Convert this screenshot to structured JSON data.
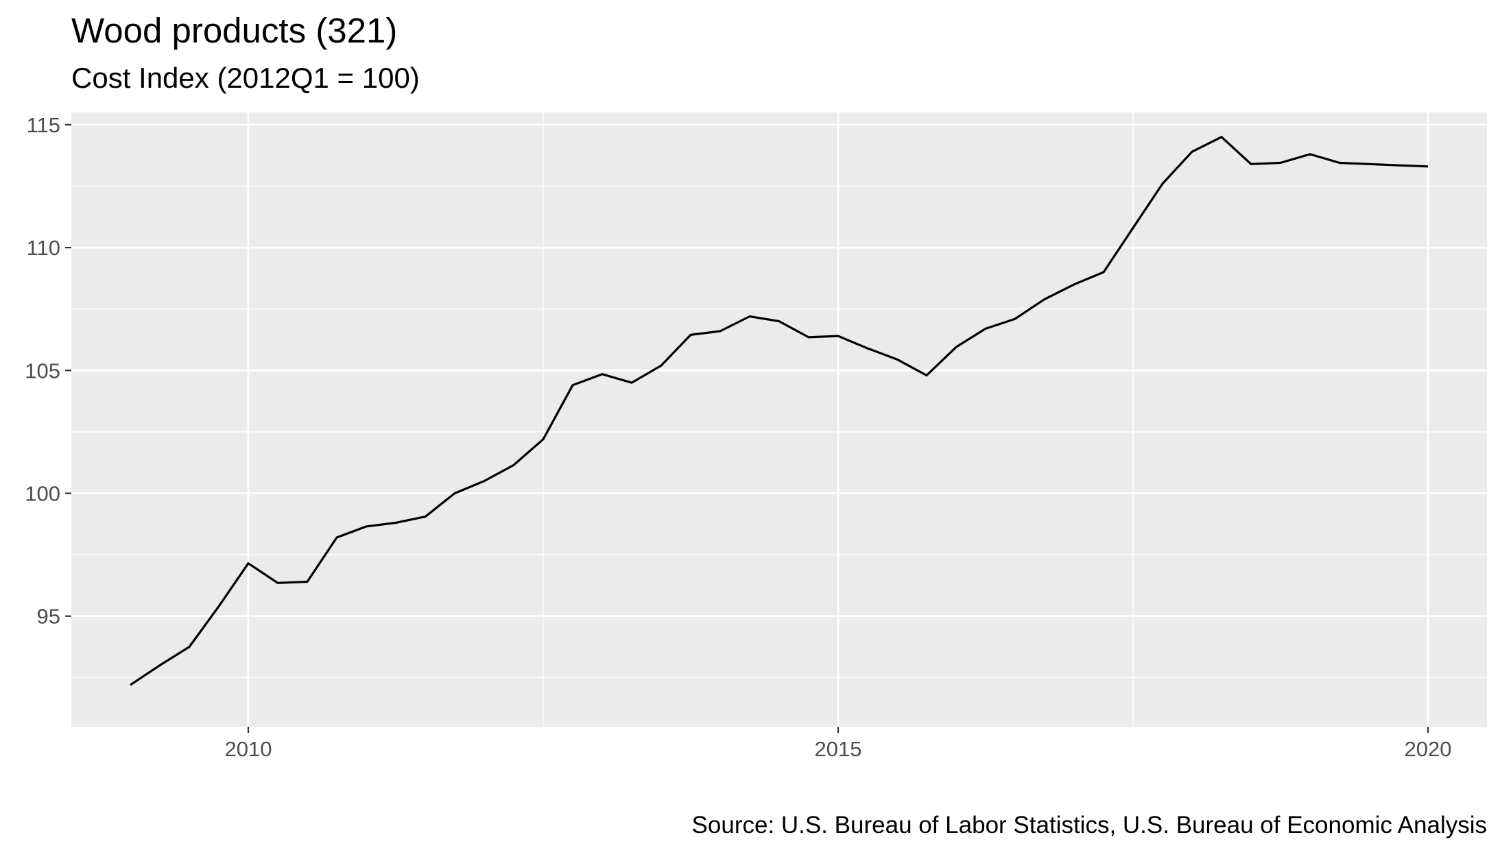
{
  "chart_data": {
    "type": "line",
    "title": "Wood products (321)",
    "subtitle": "Cost Index (2012Q1 = 100)",
    "caption": "Source: U.S. Bureau of Labor Statistics, U.S. Bureau of Economic Analysis",
    "xlabel": "",
    "ylabel": "",
    "xlim": [
      2008.5,
      2020.5
    ],
    "ylim": [
      90.5,
      115.5
    ],
    "x_ticks": [
      2010,
      2015,
      2020
    ],
    "x_tick_labels": [
      "2010",
      "2015",
      "2020"
    ],
    "y_ticks": [
      95,
      100,
      105,
      110,
      115
    ],
    "y_tick_labels": [
      "95",
      "100",
      "105",
      "110",
      "115"
    ],
    "grid": true,
    "legend": "none",
    "colors": {
      "panel": "#EBEBEB",
      "grid": "#FFFFFF",
      "line": "#000000",
      "tick_text": "#4D4D4D"
    },
    "series": [
      {
        "x": [
          2009.0,
          2009.25,
          2009.5,
          2009.75,
          2010.0,
          2010.25,
          2010.5,
          2010.75,
          2011.0,
          2011.25,
          2011.5,
          2011.75,
          2012.0,
          2012.25,
          2012.5,
          2012.75,
          2013.0,
          2013.25,
          2013.5,
          2013.75,
          2014.0,
          2014.25,
          2014.5,
          2014.75,
          2015.0,
          2015.25,
          2015.5,
          2015.75,
          2016.0,
          2016.25,
          2016.5,
          2016.75,
          2017.0,
          2017.25,
          2017.5,
          2017.75,
          2018.0,
          2018.25,
          2018.5,
          2018.75,
          2019.0,
          2019.25,
          2019.5,
          2019.75,
          2020.0
        ],
        "values": [
          92.2,
          93.0,
          93.75,
          95.4,
          97.15,
          96.35,
          96.4,
          98.2,
          98.65,
          98.8,
          99.05,
          100.0,
          100.5,
          101.15,
          102.2,
          104.4,
          104.85,
          104.5,
          105.2,
          106.45,
          106.6,
          107.2,
          107.0,
          106.35,
          106.4,
          105.9,
          105.45,
          104.8,
          105.95,
          106.7,
          107.1,
          107.9,
          108.5,
          109.0,
          110.8,
          112.6,
          113.9,
          114.5,
          113.4,
          113.45,
          113.8,
          113.45,
          113.4,
          113.35,
          113.3
        ]
      }
    ]
  }
}
